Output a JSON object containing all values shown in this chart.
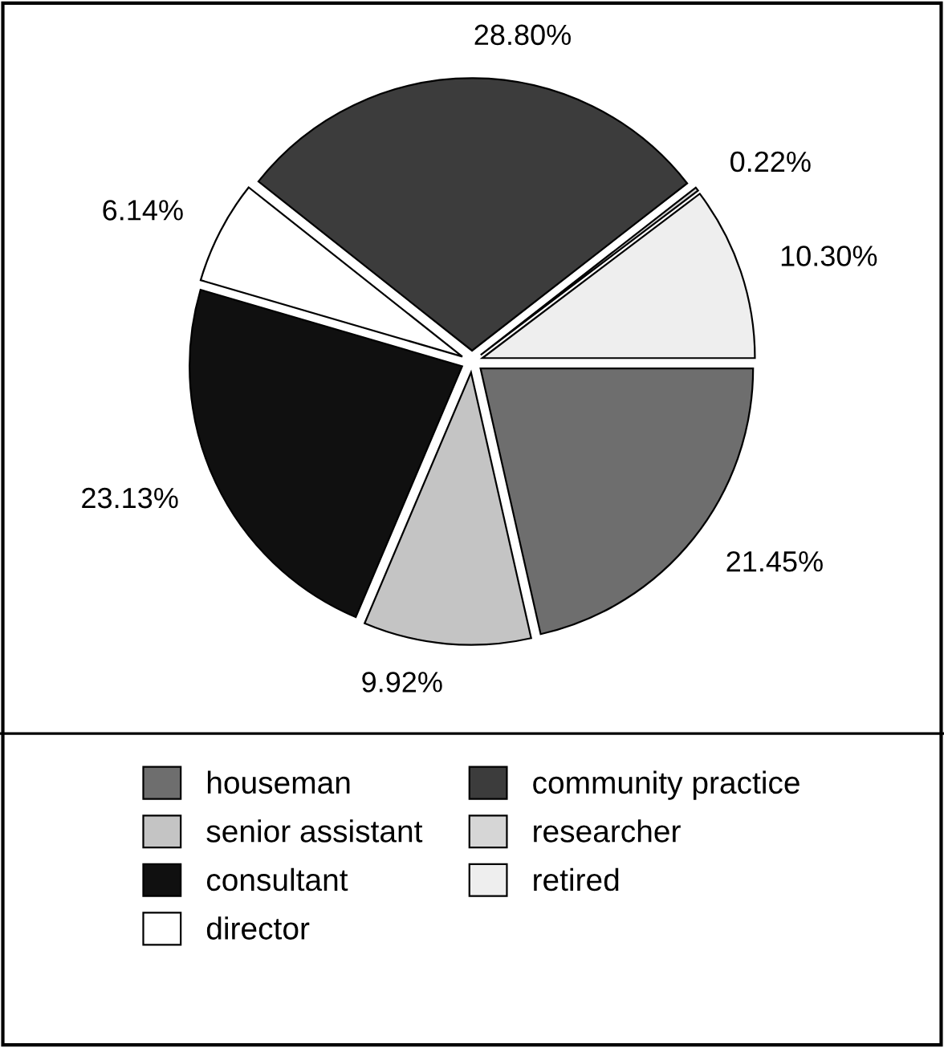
{
  "chart_data": {
    "type": "pie",
    "categories": [
      "houseman",
      "senior assistant",
      "consultant",
      "director",
      "community practice",
      "researcher",
      "retired"
    ],
    "values": [
      21.45,
      9.92,
      23.13,
      6.14,
      28.8,
      0.22,
      10.3
    ],
    "colors": [
      "#6e6e6e",
      "#c4c4c4",
      "#101010",
      "#ffffff",
      "#3c3c3c",
      "#d6d6d6",
      "#eeeeee"
    ],
    "value_labels": [
      "21.45%",
      "9.92%",
      "23.13%",
      "6.14%",
      "28.80%",
      "0.22%",
      "10.30%"
    ],
    "legend": "bottom"
  }
}
